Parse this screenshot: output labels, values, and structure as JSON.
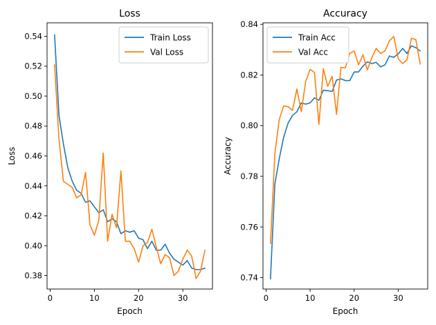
{
  "chart_data": [
    {
      "type": "line",
      "title": "Loss",
      "xlabel": "Epoch",
      "ylabel": "Loss",
      "xlim": [
        -0.7,
        36.7
      ],
      "ylim": [
        0.371,
        0.549
      ],
      "xticks": [
        0,
        10,
        20,
        30
      ],
      "yticks": [
        0.38,
        0.4,
        0.42,
        0.44,
        0.46,
        0.48,
        0.5,
        0.52,
        0.54
      ],
      "ytick_labels": [
        "0.38",
        "0.40",
        "0.42",
        "0.44",
        "0.46",
        "0.48",
        "0.50",
        "0.52",
        "0.54"
      ],
      "grid": false,
      "legend": "top-right",
      "x": [
        1,
        2,
        3,
        4,
        5,
        6,
        7,
        8,
        9,
        10,
        11,
        12,
        13,
        14,
        15,
        16,
        17,
        18,
        19,
        20,
        21,
        22,
        23,
        24,
        25,
        26,
        27,
        28,
        29,
        30,
        31,
        32,
        33,
        34,
        35
      ],
      "series": [
        {
          "name": "Train Loss",
          "color": "#1f77b4",
          "values": [
            0.541,
            0.487,
            0.468,
            0.452,
            0.443,
            0.437,
            0.435,
            0.429,
            0.43,
            0.426,
            0.422,
            0.424,
            0.416,
            0.418,
            0.416,
            0.408,
            0.41,
            0.409,
            0.41,
            0.405,
            0.404,
            0.398,
            0.403,
            0.397,
            0.397,
            0.401,
            0.395,
            0.391,
            0.389,
            0.387,
            0.39,
            0.385,
            0.384,
            0.384,
            0.385
          ]
        },
        {
          "name": "Val Loss",
          "color": "#ff7f0e",
          "values": [
            0.521,
            0.471,
            0.443,
            0.441,
            0.439,
            0.432,
            0.434,
            0.449,
            0.414,
            0.407,
            0.417,
            0.462,
            0.403,
            0.421,
            0.412,
            0.45,
            0.403,
            0.403,
            0.398,
            0.389,
            0.4,
            0.402,
            0.411,
            0.399,
            0.388,
            0.394,
            0.392,
            0.38,
            0.383,
            0.391,
            0.397,
            0.393,
            0.378,
            0.383,
            0.397
          ]
        }
      ]
    },
    {
      "type": "line",
      "title": "Accuracy",
      "xlabel": "Epoch",
      "ylabel": "Accuracy",
      "xlim": [
        -0.7,
        36.7
      ],
      "ylim": [
        0.7355,
        0.8406
      ],
      "xticks": [
        0,
        10,
        20,
        30
      ],
      "yticks": [
        0.74,
        0.76,
        0.78,
        0.8,
        0.82,
        0.84
      ],
      "ytick_labels": [
        "0.74",
        "0.76",
        "0.78",
        "0.80",
        "0.82",
        "0.84"
      ],
      "grid": false,
      "legend": "top-left",
      "x": [
        1,
        2,
        3,
        4,
        5,
        6,
        7,
        8,
        9,
        10,
        11,
        12,
        13,
        14,
        15,
        16,
        17,
        18,
        19,
        20,
        21,
        22,
        23,
        24,
        25,
        26,
        27,
        28,
        29,
        30,
        31,
        32,
        33,
        34,
        35
      ],
      "series": [
        {
          "name": "Train Acc",
          "color": "#1f77b4",
          "values": [
            0.7395,
            0.777,
            0.787,
            0.7955,
            0.801,
            0.804,
            0.8055,
            0.809,
            0.8085,
            0.809,
            0.811,
            0.81,
            0.814,
            0.8138,
            0.8135,
            0.818,
            0.8185,
            0.8178,
            0.8178,
            0.8212,
            0.8212,
            0.8235,
            0.8252,
            0.8245,
            0.825,
            0.8232,
            0.824,
            0.8275,
            0.827,
            0.8283,
            0.8305,
            0.8285,
            0.8315,
            0.8308,
            0.8295
          ]
        },
        {
          "name": "Val Acc",
          "color": "#ff7f0e",
          "values": [
            0.7535,
            0.789,
            0.8025,
            0.8078,
            0.8075,
            0.806,
            0.8145,
            0.8055,
            0.8175,
            0.8222,
            0.821,
            0.8005,
            0.8225,
            0.8155,
            0.8195,
            0.8045,
            0.823,
            0.8228,
            0.8285,
            0.8295,
            0.824,
            0.828,
            0.822,
            0.8268,
            0.8305,
            0.8285,
            0.8295,
            0.8335,
            0.8352,
            0.8265,
            0.8245,
            0.826,
            0.8345,
            0.834,
            0.8243
          ]
        }
      ]
    }
  ]
}
